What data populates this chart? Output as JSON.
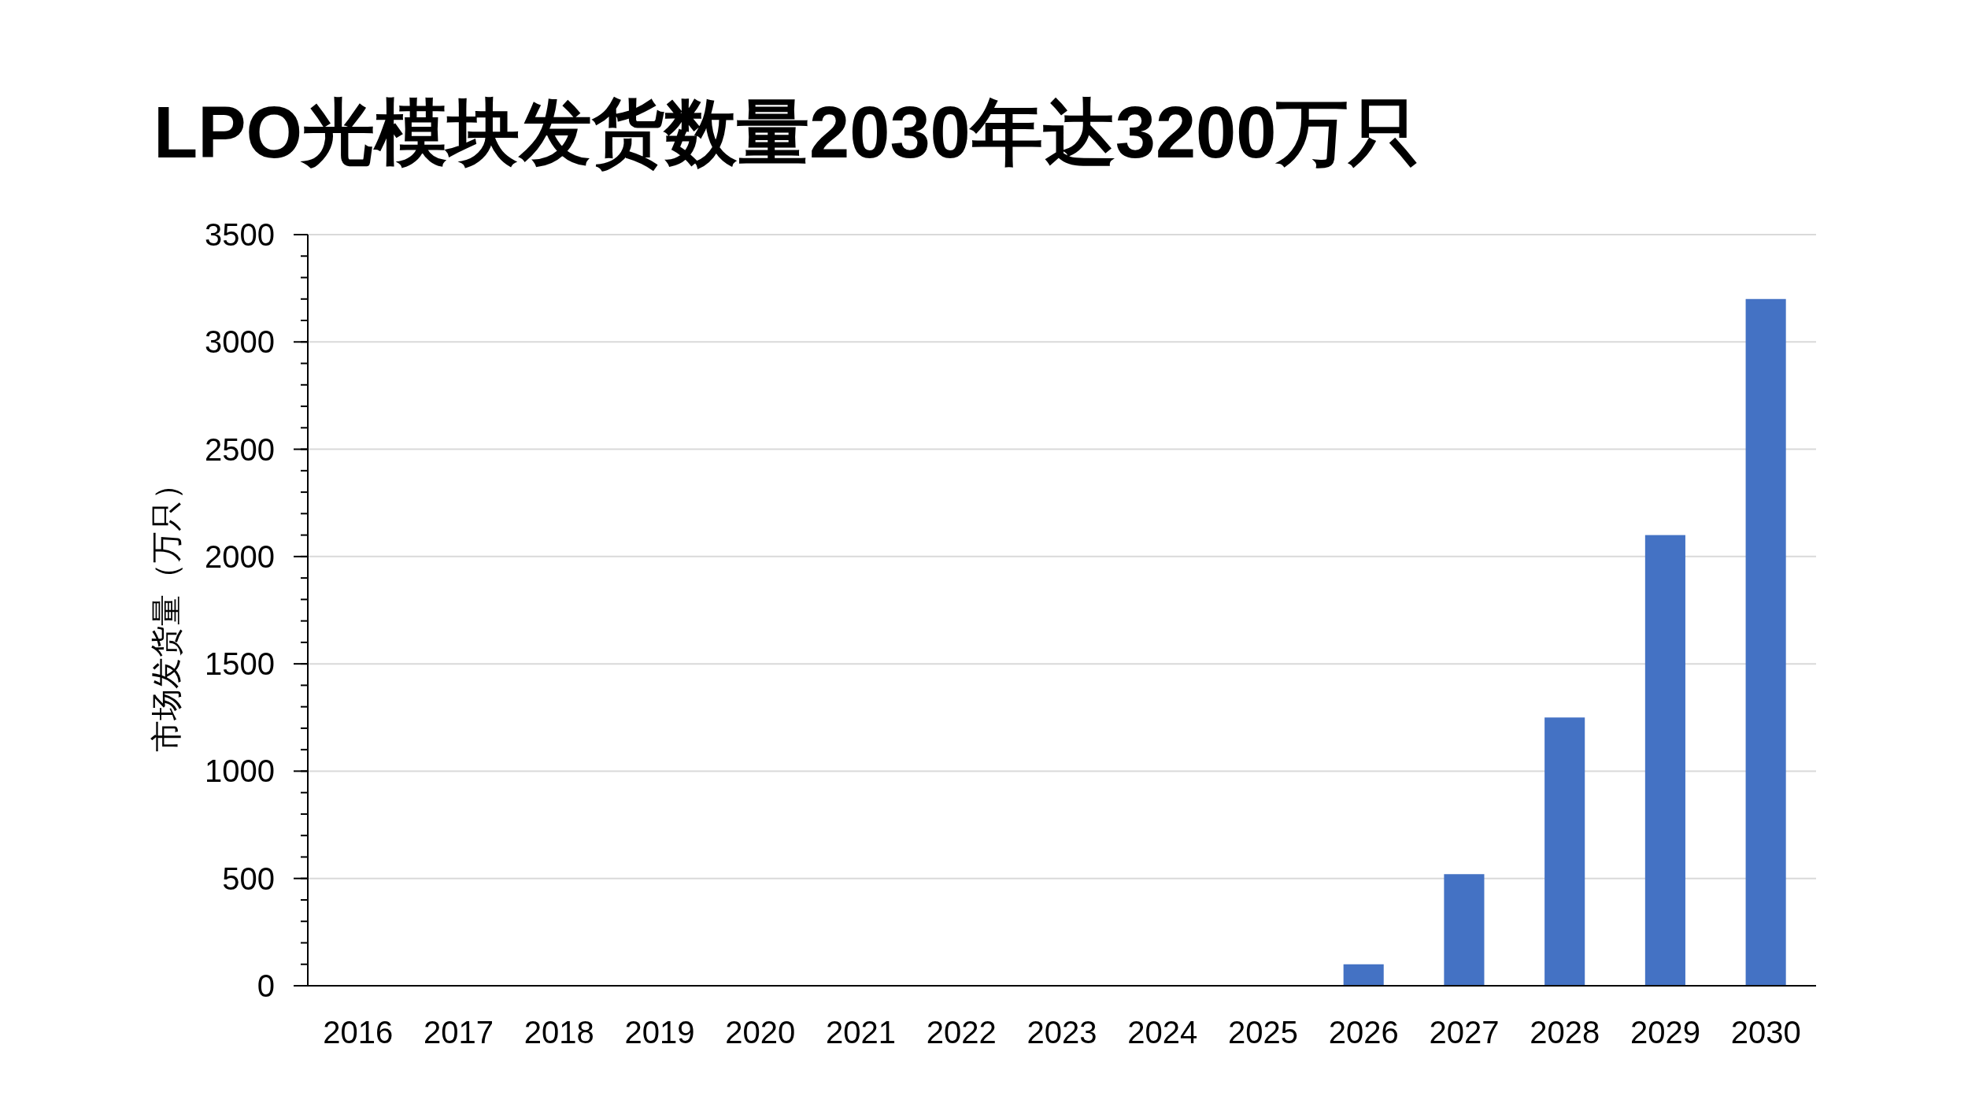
{
  "chart_data": {
    "type": "bar",
    "title": "LPO光模块发货数量2030年达3200万只",
    "ylabel": "市场发货量（万只）",
    "categories": [
      "2016",
      "2017",
      "2018",
      "2019",
      "2020",
      "2021",
      "2022",
      "2023",
      "2024",
      "2025",
      "2026",
      "2027",
      "2028",
      "2029",
      "2030"
    ],
    "values": [
      0,
      0,
      0,
      0,
      0,
      0,
      0,
      0,
      0,
      0,
      100,
      520,
      1250,
      2100,
      3200
    ],
    "color": "#4472c4",
    "ylim": [
      0,
      3500
    ],
    "yticks": [
      0,
      500,
      1000,
      1500,
      2000,
      2500,
      3000,
      3500
    ],
    "grid": "y"
  }
}
